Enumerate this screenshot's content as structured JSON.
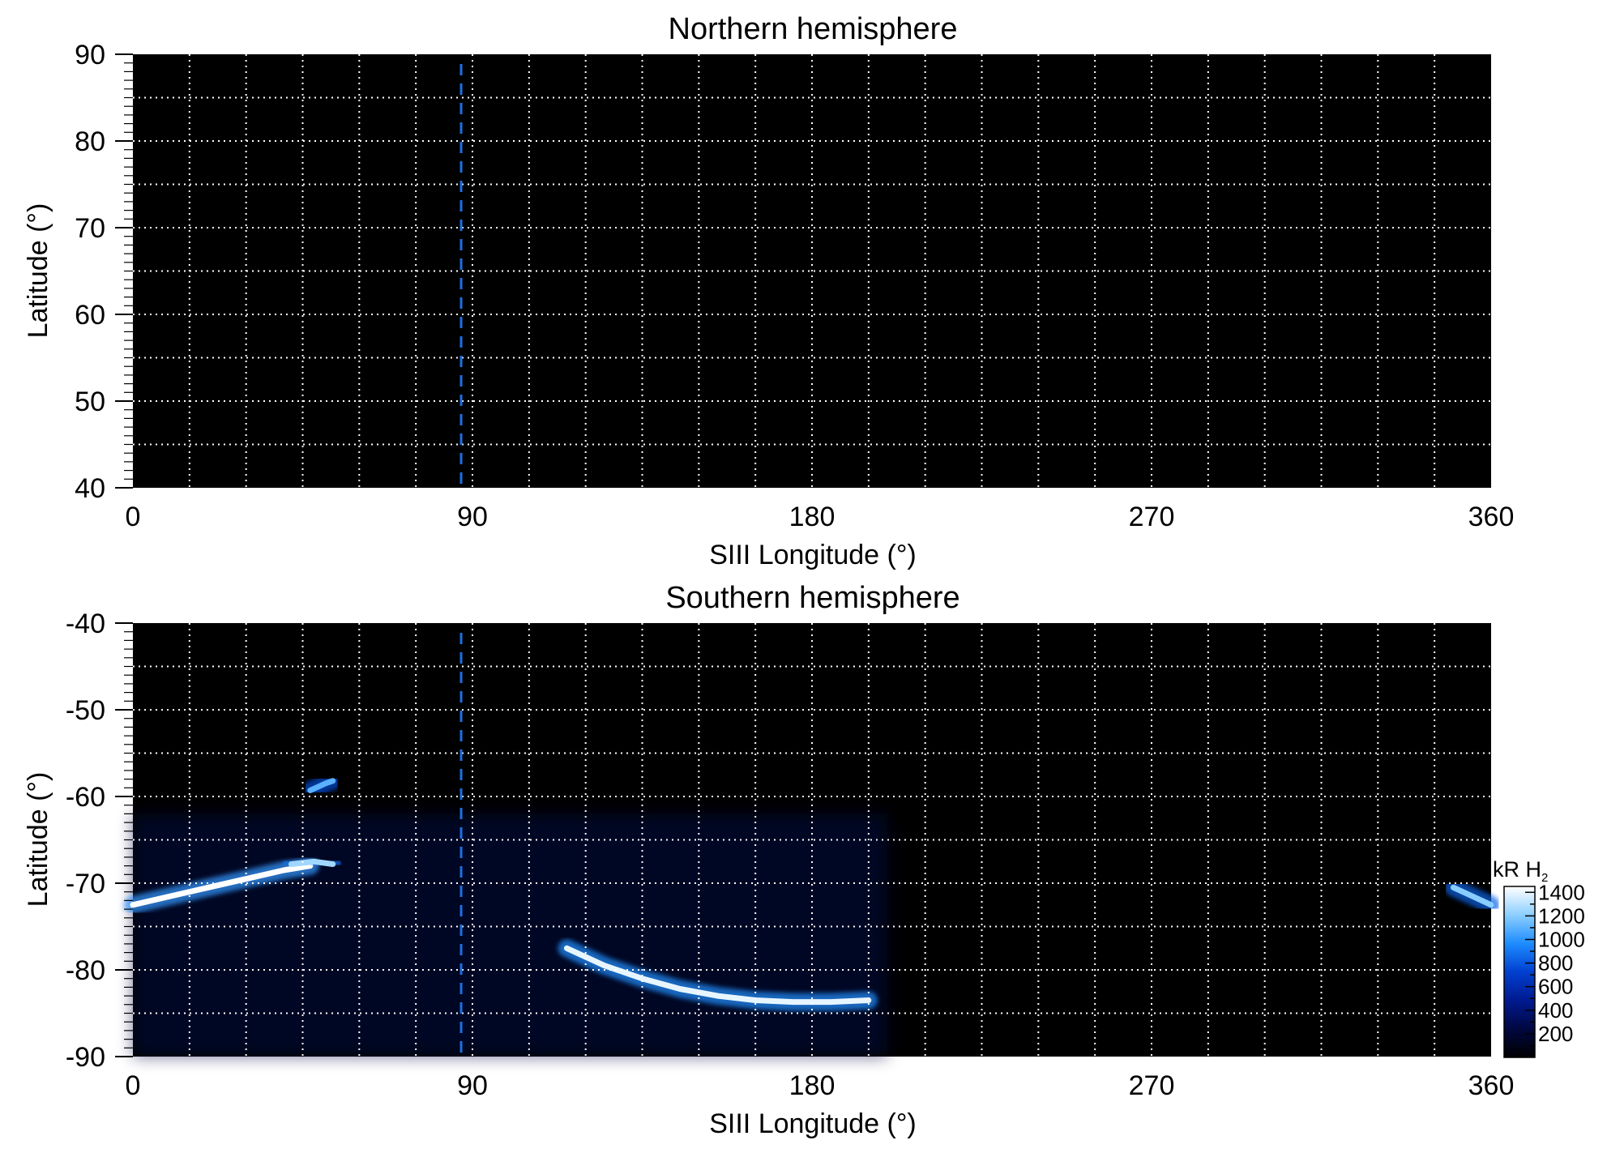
{
  "chart_data": [
    {
      "type": "heatmap",
      "title": "Northern hemisphere",
      "xlabel": "SIII Longitude (°)",
      "ylabel": "Latitude (°)",
      "xlim": [
        0,
        360
      ],
      "ylim": [
        40,
        90
      ],
      "x_ticks": [
        "0",
        "90",
        "180",
        "270",
        "360"
      ],
      "y_ticks": [
        "90",
        "80",
        "70",
        "60",
        "50",
        "40"
      ],
      "grid": true,
      "grid_step_deg": {
        "longitude": 15,
        "latitude": 5
      },
      "marker_line": {
        "longitude": 87,
        "style": "dashed",
        "color": "#1e6fe0"
      },
      "emission_features": []
    },
    {
      "type": "heatmap",
      "title": "Southern hemisphere",
      "xlabel": "SIII Longitude (°)",
      "ylabel": "Latitude (°)",
      "xlim": [
        0,
        360
      ],
      "ylim": [
        -90,
        -40
      ],
      "x_ticks": [
        "0",
        "90",
        "180",
        "270",
        "360"
      ],
      "y_ticks": [
        "-40",
        "-50",
        "-60",
        "-70",
        "-80",
        "-90"
      ],
      "grid": true,
      "grid_step_deg": {
        "longitude": 15,
        "latitude": 5
      },
      "marker_line": {
        "longitude": 87,
        "style": "dashed",
        "color": "#1e6fe0"
      },
      "emission_features": [
        {
          "name": "main oval segment",
          "points": [
            [
              0,
              -72.5
            ],
            [
              10,
              -71.5
            ],
            [
              20,
              -70.5
            ],
            [
              30,
              -69.5
            ],
            [
              40,
              -68.5
            ],
            [
              47,
              -68.0
            ]
          ],
          "brightness": 1450
        },
        {
          "name": "oval spot",
          "points": [
            [
              42,
              -67.8
            ],
            [
              48,
              -67.5
            ],
            [
              53,
              -67.8
            ]
          ],
          "brightness": 1250
        },
        {
          "name": "polar spot",
          "points": [
            [
              47,
              -59.3
            ],
            [
              51,
              -58.5
            ],
            [
              53,
              -58.2
            ]
          ],
          "brightness": 1100
        },
        {
          "name": "southern arc",
          "points": [
            [
              115,
              -77.5
            ],
            [
              125,
              -79.5
            ],
            [
              135,
              -81.0
            ],
            [
              145,
              -82.2
            ],
            [
              155,
              -83.0
            ],
            [
              165,
              -83.5
            ],
            [
              175,
              -83.7
            ],
            [
              185,
              -83.7
            ],
            [
              195,
              -83.5
            ]
          ],
          "brightness": 1400
        },
        {
          "name": "wraparound segment",
          "points": [
            [
              350,
              -70.5
            ],
            [
              355,
              -71.5
            ],
            [
              360,
              -72.5
            ]
          ],
          "brightness": 1200
        }
      ],
      "diffuse_region": {
        "longitude": [
          0,
          200
        ],
        "latitude": [
          -90,
          -62
        ],
        "brightness": 250
      }
    }
  ],
  "colorbar": {
    "label": "kR H",
    "label_subscript": "2",
    "range": [
      0,
      1450
    ],
    "ticks": [
      "1400",
      "1200",
      "1000",
      "800",
      "600",
      "400",
      "200"
    ],
    "tick_values": [
      1400,
      1200,
      1000,
      800,
      600,
      400,
      200
    ],
    "colors": [
      "#000000",
      "#000840",
      "#001a90",
      "#0040d0",
      "#1e8cff",
      "#8ccfff",
      "#ffffff"
    ]
  },
  "colors": {
    "plot_background": "#000000",
    "grid": "#ffffff",
    "marker_line": "#1e6fe0"
  }
}
